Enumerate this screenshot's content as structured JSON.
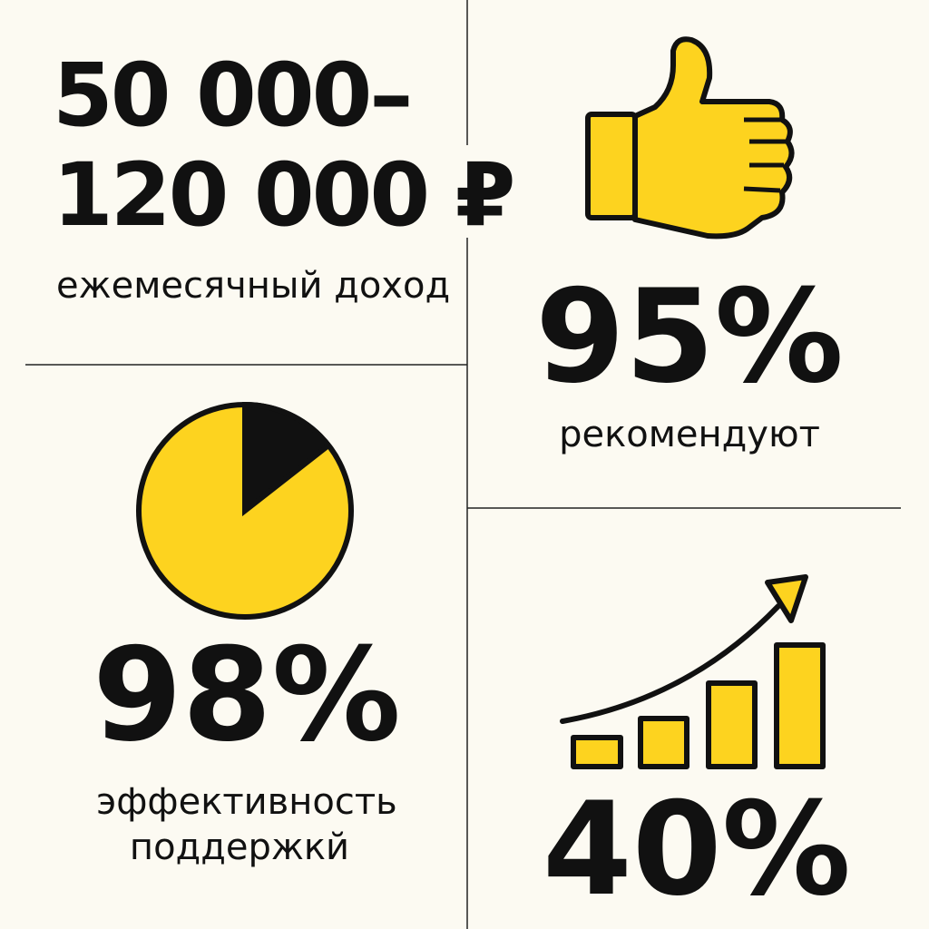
{
  "income": {
    "range_line1": "50 000–",
    "range_line2": "120 000 ₽",
    "caption": "ежемесячный доход"
  },
  "recommend": {
    "value": "95%",
    "caption": "рекомендуют"
  },
  "support": {
    "value": "98%",
    "caption_line1": "эффективность",
    "caption_line2": "поддержкй"
  },
  "growth": {
    "value": "40%"
  }
}
